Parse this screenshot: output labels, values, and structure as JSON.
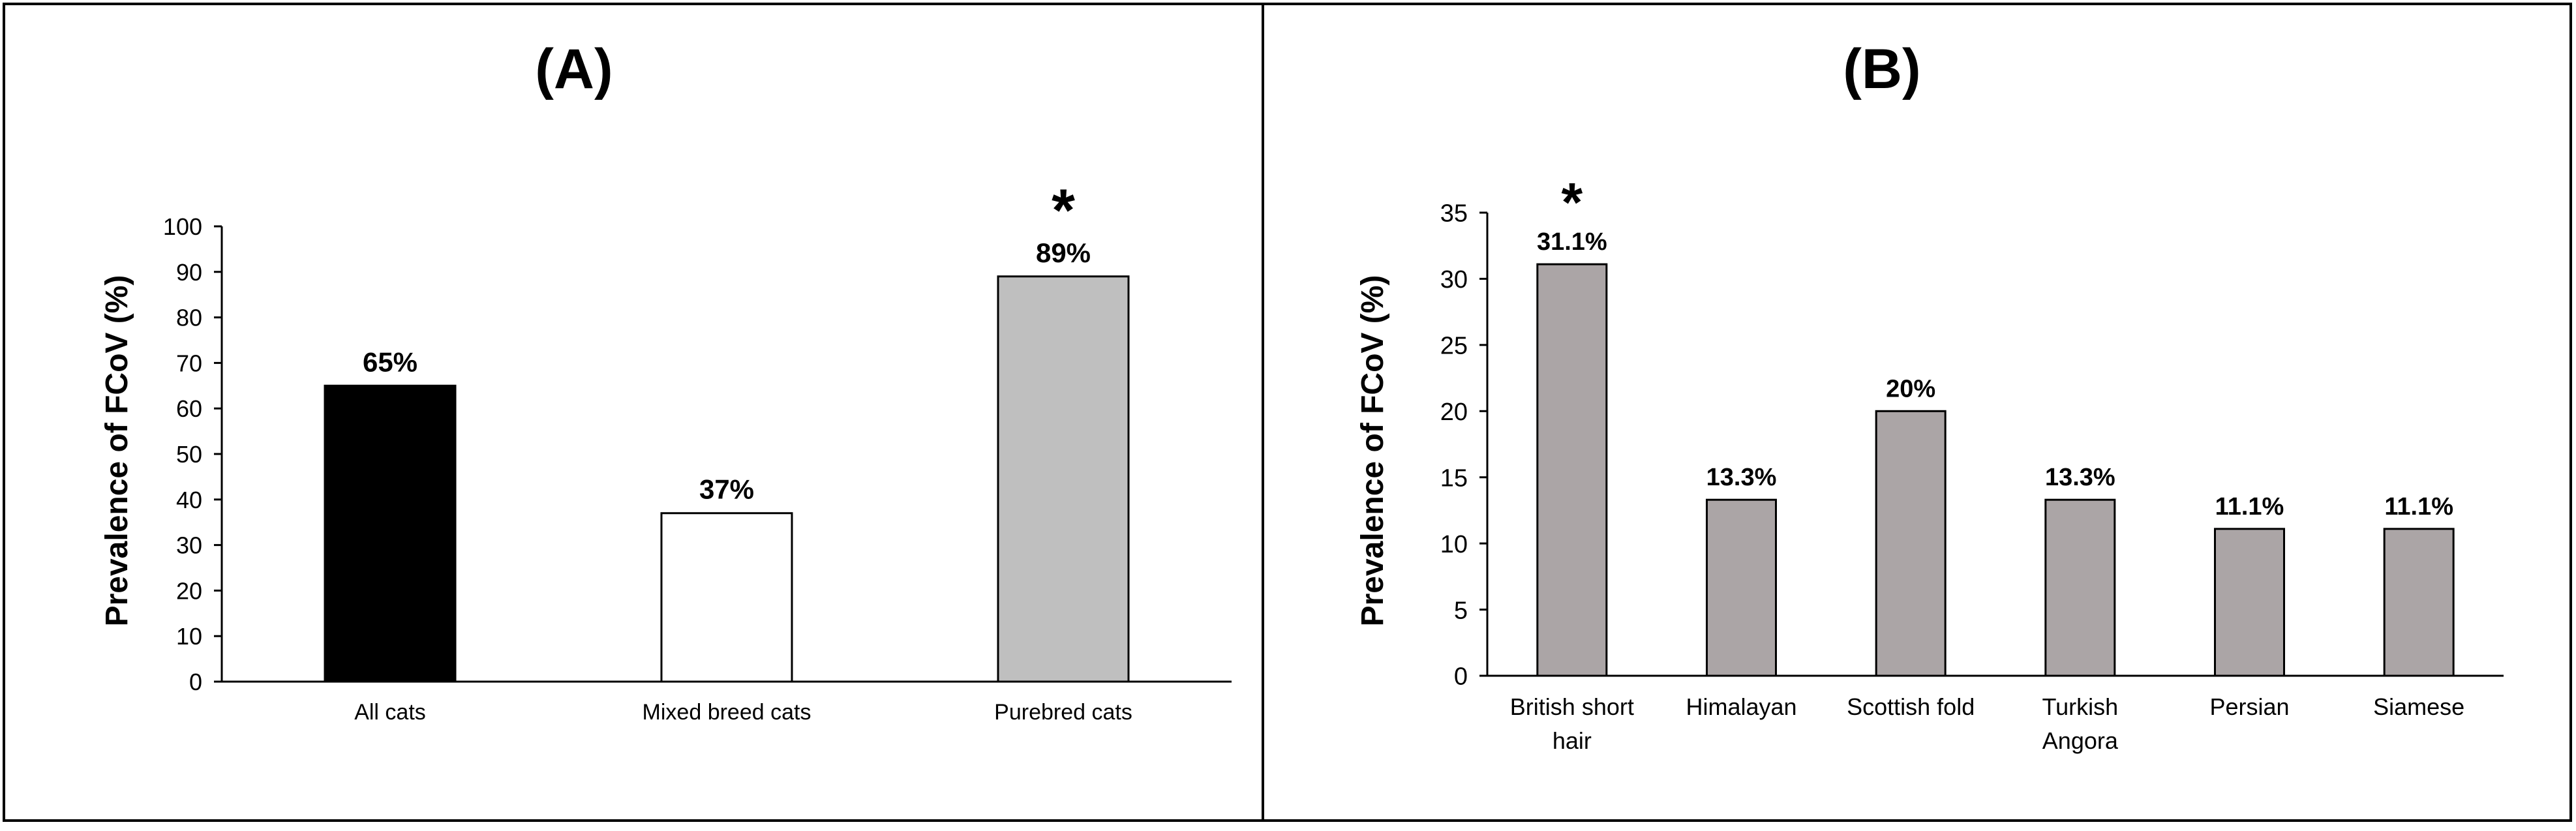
{
  "chart_data": [
    {
      "type": "bar",
      "title": "(A)",
      "ylabel": "Prevalence of FCoV (%)",
      "xlabel": "",
      "ylim": [
        0,
        100
      ],
      "yticks": [
        "0",
        "10",
        "20",
        "30",
        "40",
        "50",
        "60",
        "70",
        "80",
        "90",
        "100"
      ],
      "categories": [
        "All cats",
        "Mixed breed cats",
        "Purebred cats"
      ],
      "values": [
        65,
        37,
        89
      ],
      "value_labels": [
        "65%",
        "37%",
        "89%"
      ],
      "bar_colors": [
        "#000000",
        "#ffffff",
        "#bfbfbf"
      ],
      "annotations": [
        {
          "category": "Purebred cats",
          "text": "*"
        }
      ],
      "grid": false,
      "legend": "none"
    },
    {
      "type": "bar",
      "title": "(B)",
      "ylabel": "Prevalence of FCoV (%)",
      "xlabel": "",
      "ylim": [
        0,
        35
      ],
      "yticks": [
        "0",
        "5",
        "10",
        "15",
        "20",
        "25",
        "30",
        "35"
      ],
      "categories": [
        [
          "British short",
          "hair"
        ],
        [
          "Himalayan"
        ],
        [
          "Scottish fold"
        ],
        [
          "Turkish",
          "Angora"
        ],
        [
          "Persian"
        ],
        [
          "Siamese"
        ]
      ],
      "values": [
        31.1,
        13.3,
        20,
        13.3,
        11.1,
        11.1
      ],
      "value_labels": [
        "31.1%",
        "13.3%",
        "20%",
        "13.3%",
        "11.1%",
        "11.1%"
      ],
      "bar_colors": [
        "#aba5a6",
        "#aba5a6",
        "#aba5a6",
        "#aba5a6",
        "#aba5a6",
        "#aba5a6"
      ],
      "annotations": [
        {
          "category": "British short hair",
          "text": "*"
        }
      ],
      "grid": false,
      "legend": "none"
    }
  ]
}
